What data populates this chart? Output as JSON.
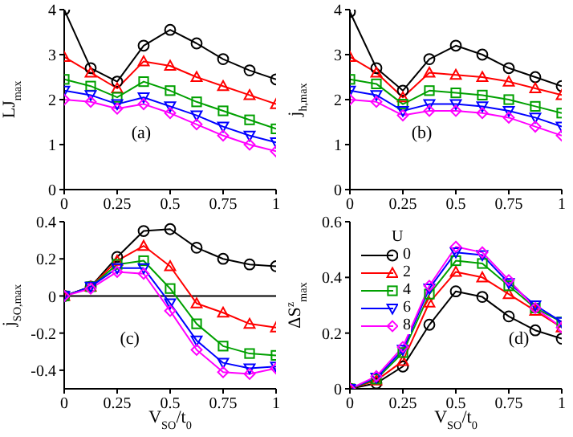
{
  "chart_data": [
    {
      "type": "line",
      "ylabel": "LJ$_{max}$",
      "annotations": [
        "(a)"
      ],
      "x": [
        0,
        0.125,
        0.25,
        0.375,
        0.5,
        0.625,
        0.75,
        0.875,
        1
      ],
      "xlim": [
        0,
        1
      ],
      "xticks": [
        0,
        0.25,
        0.5,
        0.75,
        1
      ],
      "ylim": [
        0,
        4
      ],
      "yticks": [
        0,
        1,
        2,
        3,
        4
      ],
      "series": [
        {
          "color": "#000000",
          "marker": "circle",
          "values": [
            4.0,
            2.7,
            2.4,
            3.2,
            3.55,
            3.25,
            2.9,
            2.65,
            2.45
          ]
        },
        {
          "color": "#ff0000",
          "marker": "triangle",
          "values": [
            2.95,
            2.6,
            2.25,
            2.85,
            2.75,
            2.5,
            2.3,
            2.1,
            1.9
          ]
        },
        {
          "color": "#00a000",
          "marker": "square",
          "values": [
            2.45,
            2.3,
            2.05,
            2.4,
            2.2,
            1.95,
            1.75,
            1.55,
            1.35
          ]
        },
        {
          "color": "#0000ff",
          "marker": "triangle-down",
          "values": [
            2.2,
            2.1,
            1.9,
            2.05,
            1.85,
            1.65,
            1.4,
            1.2,
            1.05
          ]
        },
        {
          "color": "#ff00ff",
          "marker": "diamond",
          "values": [
            2.0,
            1.95,
            1.8,
            1.9,
            1.7,
            1.45,
            1.2,
            1.0,
            0.85
          ]
        }
      ]
    },
    {
      "type": "line",
      "ylabel": "j$_{h,max}$",
      "annotations": [
        "(b)"
      ],
      "x": [
        0,
        0.125,
        0.25,
        0.375,
        0.5,
        0.625,
        0.75,
        0.875,
        1
      ],
      "xlim": [
        0,
        1
      ],
      "xticks": [
        0,
        0.25,
        0.5,
        0.75,
        1
      ],
      "ylim": [
        0,
        4
      ],
      "yticks": [
        0,
        1,
        2,
        3,
        4
      ],
      "series": [
        {
          "color": "#000000",
          "marker": "circle",
          "values": [
            3.95,
            2.7,
            2.2,
            2.9,
            3.2,
            3.0,
            2.7,
            2.5,
            2.3
          ]
        },
        {
          "color": "#ff0000",
          "marker": "triangle",
          "values": [
            2.95,
            2.6,
            2.05,
            2.6,
            2.55,
            2.5,
            2.4,
            2.25,
            2.1
          ]
        },
        {
          "color": "#00a000",
          "marker": "square",
          "values": [
            2.45,
            2.35,
            1.9,
            2.2,
            2.15,
            2.1,
            2.0,
            1.85,
            1.7
          ]
        },
        {
          "color": "#0000ff",
          "marker": "triangle-down",
          "values": [
            2.2,
            2.1,
            1.75,
            1.9,
            1.9,
            1.85,
            1.75,
            1.6,
            1.4
          ]
        },
        {
          "color": "#ff00ff",
          "marker": "diamond",
          "values": [
            2.0,
            1.95,
            1.65,
            1.75,
            1.75,
            1.7,
            1.6,
            1.4,
            1.2
          ]
        }
      ]
    },
    {
      "type": "line",
      "ylabel": "j$_{SO,max}$",
      "xlabel": "V$_{SO}$/t$_{0}$",
      "annotations": [
        "(c)"
      ],
      "x": [
        0,
        0.125,
        0.25,
        0.375,
        0.5,
        0.625,
        0.75,
        0.875,
        1
      ],
      "xlim": [
        0,
        1
      ],
      "xticks": [
        0,
        0.25,
        0.5,
        0.75,
        1
      ],
      "ylim": [
        -0.5,
        0.4
      ],
      "yticks": [
        -0.4,
        -0.2,
        0,
        0.2,
        0.4
      ],
      "ref_lines": [
        {
          "axis": "y",
          "value": 0,
          "color": "#000000"
        }
      ],
      "series": [
        {
          "color": "#000000",
          "marker": "circle",
          "values": [
            0,
            0.05,
            0.21,
            0.35,
            0.36,
            0.26,
            0.2,
            0.17,
            0.16
          ]
        },
        {
          "color": "#ff0000",
          "marker": "triangle",
          "values": [
            0,
            0.05,
            0.19,
            0.27,
            0.16,
            -0.04,
            -0.09,
            -0.15,
            -0.17
          ]
        },
        {
          "color": "#00a000",
          "marker": "square",
          "values": [
            0,
            0.05,
            0.17,
            0.19,
            0.04,
            -0.15,
            -0.27,
            -0.31,
            -0.32
          ]
        },
        {
          "color": "#0000ff",
          "marker": "triangle-down",
          "values": [
            0,
            0.05,
            0.15,
            0.15,
            -0.04,
            -0.24,
            -0.36,
            -0.39,
            -0.38
          ]
        },
        {
          "color": "#ff00ff",
          "marker": "diamond",
          "values": [
            0,
            0.04,
            0.13,
            0.12,
            -0.08,
            -0.29,
            -0.41,
            -0.42,
            -0.39
          ]
        }
      ]
    },
    {
      "type": "line",
      "ylabel": "ΔS$^{z}$$_{max}$",
      "xlabel": "V$_{SO}$/t$_{0}$",
      "annotations": [
        "(d)"
      ],
      "legend": "top left",
      "legend_title": "U",
      "x": [
        0,
        0.125,
        0.25,
        0.375,
        0.5,
        0.625,
        0.75,
        0.875,
        1
      ],
      "xlim": [
        0,
        1
      ],
      "xticks": [
        0,
        0.25,
        0.5,
        0.75,
        1
      ],
      "ylim": [
        0,
        0.6
      ],
      "yticks": [
        0,
        0.2,
        0.4,
        0.6
      ],
      "series": [
        {
          "name": "0",
          "color": "#000000",
          "marker": "circle",
          "values": [
            0,
            0.02,
            0.08,
            0.23,
            0.35,
            0.33,
            0.26,
            0.21,
            0.18
          ]
        },
        {
          "name": "2",
          "color": "#ff0000",
          "marker": "triangle",
          "values": [
            0,
            0.03,
            0.1,
            0.31,
            0.42,
            0.4,
            0.34,
            0.28,
            0.22
          ]
        },
        {
          "name": "4",
          "color": "#00a000",
          "marker": "square",
          "values": [
            0,
            0.035,
            0.13,
            0.34,
            0.46,
            0.45,
            0.37,
            0.29,
            0.24
          ]
        },
        {
          "name": "6",
          "color": "#0000ff",
          "marker": "triangle-down",
          "values": [
            0,
            0.04,
            0.14,
            0.36,
            0.49,
            0.48,
            0.38,
            0.3,
            0.24
          ]
        },
        {
          "name": "8",
          "color": "#ff00ff",
          "marker": "diamond",
          "values": [
            0,
            0.045,
            0.15,
            0.37,
            0.51,
            0.49,
            0.39,
            0.29,
            0.22
          ]
        }
      ]
    }
  ]
}
